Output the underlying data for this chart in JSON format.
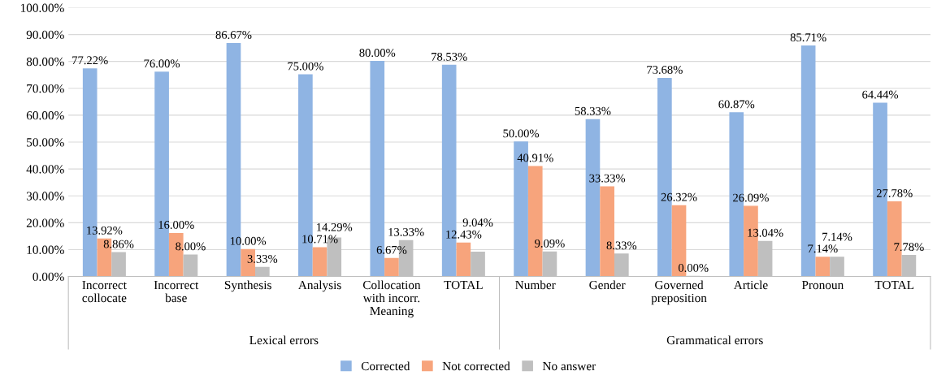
{
  "chart_data": {
    "type": "bar",
    "categories": [
      "Incorrect\ncollocate",
      "Incorrect\nbase",
      "Synthesis",
      "Analysis",
      "Collocation\nwith incorr.\nMeaning",
      "TOTAL",
      "Number",
      "Gender",
      "Governed\npreposition",
      "Article",
      "Pronoun",
      "TOTAL"
    ],
    "series": [
      {
        "name": "Corrected",
        "color": "#8fb4e3",
        "values": [
          77.22,
          76.0,
          86.67,
          75.0,
          80.0,
          78.53,
          50.0,
          58.33,
          73.68,
          60.87,
          85.71,
          64.44
        ],
        "value_labels": [
          "77.22%",
          "76.00%",
          "86.67%",
          "75.00%",
          "80.00%",
          "78.53%",
          "50.00%",
          "58.33%",
          "73.68%",
          "60.87%",
          "85.71%",
          "64.44%"
        ]
      },
      {
        "name": "Not corrected",
        "color": "#f7a47c",
        "values": [
          13.92,
          16.0,
          10.0,
          10.71,
          6.67,
          12.43,
          40.91,
          33.33,
          26.32,
          26.09,
          7.14,
          27.78
        ],
        "value_labels": [
          "13.92%",
          "16.00%",
          "10.00%",
          "10.71%",
          "6.67%",
          "12.43%",
          "40.91%",
          "33.33%",
          "26.32%",
          "26.09%",
          "7.14%",
          "27.78%"
        ]
      },
      {
        "name": "No answer",
        "color": "#bfbfbf",
        "values": [
          8.86,
          8.0,
          3.33,
          14.29,
          13.33,
          9.04,
          9.09,
          8.33,
          0.0,
          13.04,
          7.14,
          7.78
        ],
        "value_labels": [
          "8.86%",
          "8.00%",
          "3.33%",
          "14.29%",
          "13.33%",
          "9.04%",
          "9.09%",
          "8.33%",
          "0.00%",
          "13.04%",
          "7.14%",
          "7.78%"
        ]
      }
    ],
    "annotations": [
      "Lexical errors",
      "Grammatical errors"
    ],
    "ylim": [
      0,
      100
    ],
    "yticks": [
      {
        "value": 0,
        "label": "0.00%"
      },
      {
        "value": 10,
        "label": "10.00%"
      },
      {
        "value": 20,
        "label": "20.00%"
      },
      {
        "value": 30,
        "label": "30.00%"
      },
      {
        "value": 40,
        "label": "40.00%"
      },
      {
        "value": 50,
        "label": "50.00%"
      },
      {
        "value": 60,
        "label": "60.00%"
      },
      {
        "value": 70,
        "label": "70.00%"
      },
      {
        "value": 80,
        "label": "80.00%"
      },
      {
        "value": 90,
        "label": "90.00%"
      },
      {
        "value": 100,
        "label": "100.00%"
      }
    ],
    "grid": "y",
    "legend": "bottom"
  }
}
